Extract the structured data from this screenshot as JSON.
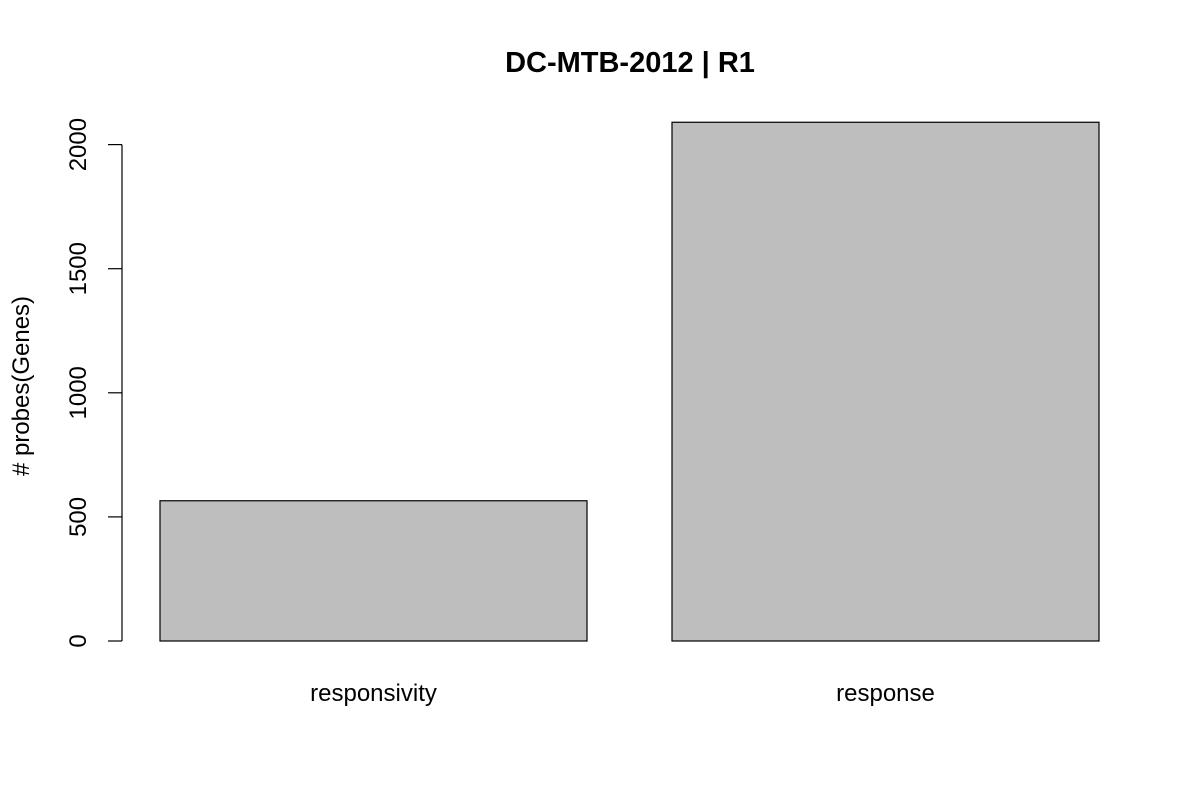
{
  "chart_data": {
    "type": "bar",
    "title": "DC-MTB-2012 | R1",
    "xlabel": "",
    "ylabel": "# probes(Genes)",
    "categories": [
      "responsivity",
      "response"
    ],
    "values": [
      565,
      2090
    ],
    "ylim": [
      0,
      2000
    ],
    "yticks": [
      0,
      500,
      1000,
      1500,
      2000
    ],
    "grid": false,
    "legend": "none",
    "bar_fill": "#bebebe",
    "bar_stroke": "#000000"
  }
}
